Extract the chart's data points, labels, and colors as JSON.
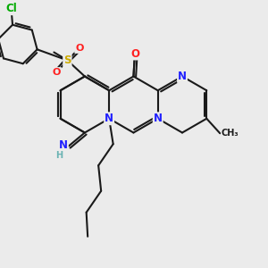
{
  "bg_color": "#ebebeb",
  "bond_color": "#1a1a1a",
  "bond_width": 1.5,
  "atom_colors": {
    "C": "#1a1a1a",
    "N": "#2020ff",
    "O": "#ff2020",
    "S": "#ccaa00",
    "Cl": "#00aa00",
    "H": "#6ab3b3"
  },
  "font_size": 8.5,
  "font_size_small": 7.0
}
